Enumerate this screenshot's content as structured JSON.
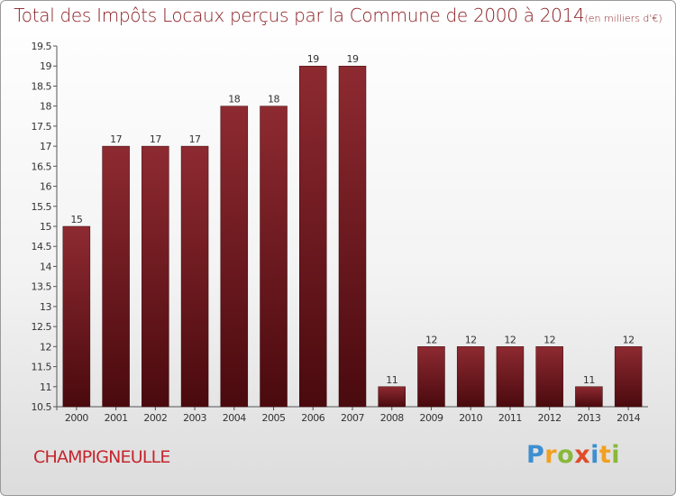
{
  "header": {
    "title": "Total des Impôts Locaux perçus par la Commune de 2000 à 2014",
    "unit": "(en milliers d'€)"
  },
  "footer": {
    "commune": "CHAMPIGNEULLE",
    "logo": {
      "letters": [
        "P",
        "r",
        "o",
        "x",
        "i",
        "t",
        "i"
      ],
      "colors": [
        "#3d8fd0",
        "#f2a020",
        "#89b93a",
        "#e04b2a",
        "#3d8fd0",
        "#f2a020",
        "#89b93a"
      ]
    }
  },
  "colors": {
    "title": "#8b1f24",
    "bar_top": "#8e2a31",
    "bar_bottom": "#4a0a0e",
    "commune": "#c4262e"
  },
  "chart_data": {
    "type": "bar",
    "title": "Total des Impôts Locaux perçus par la Commune de 2000 à 2014",
    "subtitle": "(en milliers d'€)",
    "xlabel": "",
    "ylabel": "",
    "categories": [
      "2000",
      "2001",
      "2002",
      "2003",
      "2004",
      "2005",
      "2006",
      "2007",
      "2008",
      "2009",
      "2010",
      "2011",
      "2012",
      "2013",
      "2014"
    ],
    "values": [
      15,
      17,
      17,
      17,
      18,
      18,
      19,
      19,
      11,
      12,
      12,
      12,
      12,
      11,
      12
    ],
    "data_labels": [
      "15",
      "17",
      "17",
      "17",
      "18",
      "18",
      "19",
      "19",
      "11",
      "12",
      "12",
      "12",
      "12",
      "11",
      "12"
    ],
    "ylim": [
      10.5,
      19.5
    ],
    "yticks": [
      "10.5",
      "11",
      "11.5",
      "12",
      "12.5",
      "13",
      "13.5",
      "14",
      "14.5",
      "15",
      "15.5",
      "16",
      "16.5",
      "17",
      "17.5",
      "18",
      "18.5",
      "19",
      "19.5"
    ],
    "grid": false,
    "legend": "none"
  }
}
